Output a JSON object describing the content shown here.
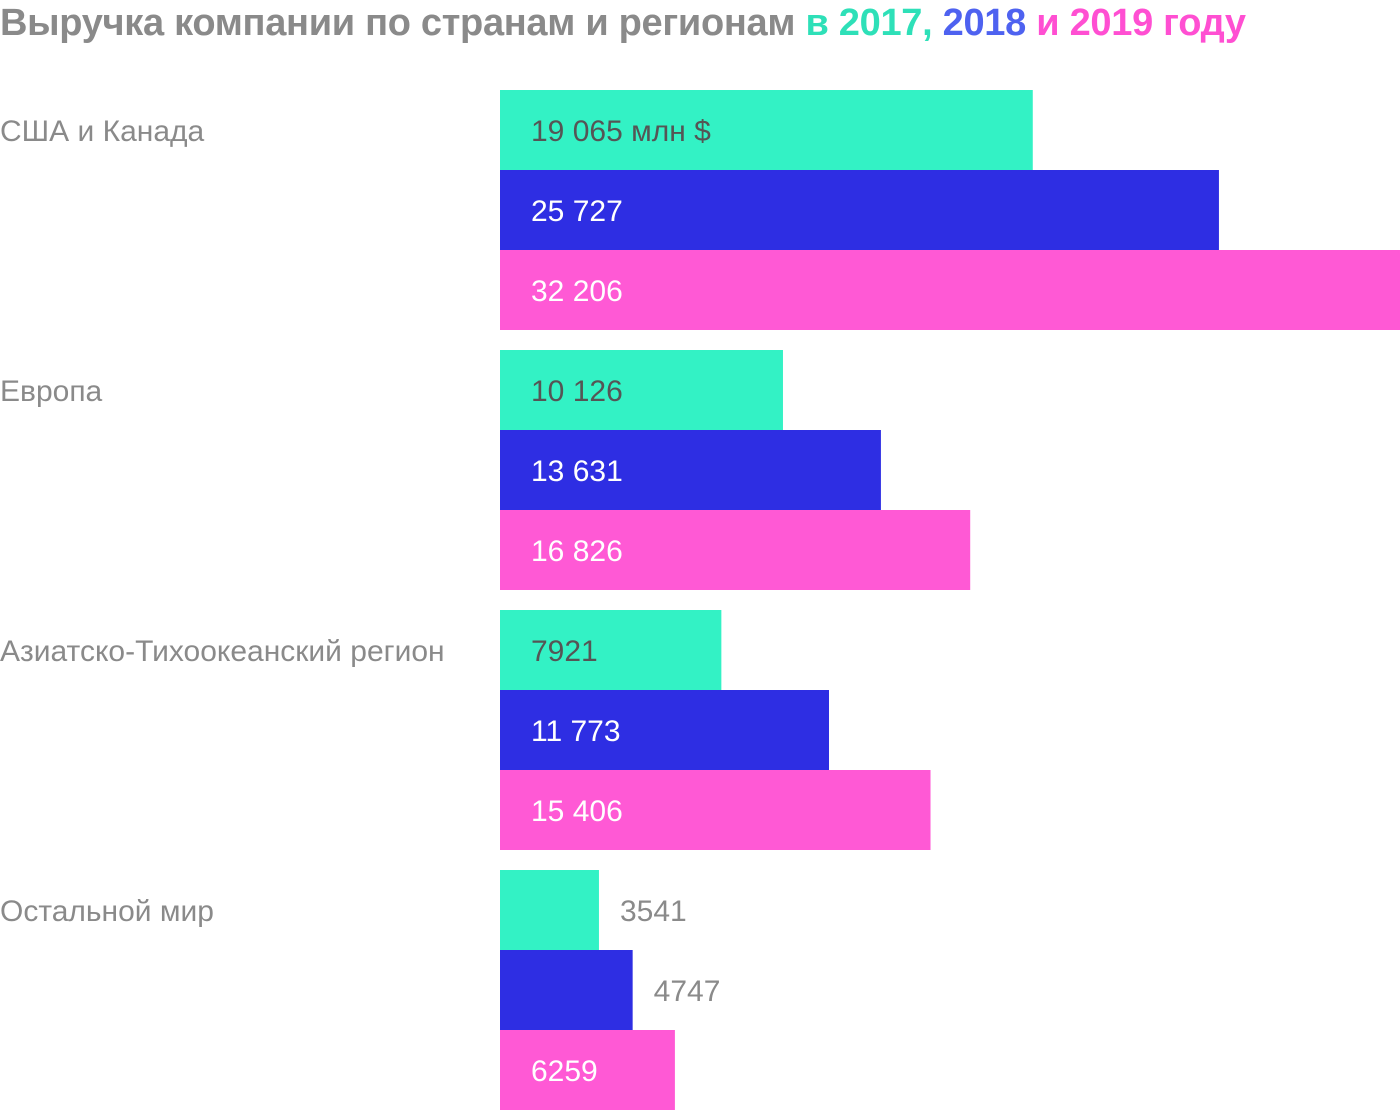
{
  "title": {
    "main": "Выручка компании по странам и регионам ",
    "connector1": "в ",
    "year1": "2017,",
    "space": " ",
    "year2": "2018",
    "connector2": " и ",
    "year3": "2019",
    "connector3": " году"
  },
  "colors": {
    "title_gray": "#8a8a8a",
    "2017": "#33f2c5",
    "2018": "#2e2ee3",
    "2019": "#ff59d5",
    "title_2017": "#2ee0b8",
    "title_2018": "#4e62f0",
    "title_2019": "#ff4fd2",
    "label_dark": "#555555",
    "label_light": "#ffffff",
    "label_outside": "#8a8a8a"
  },
  "chart_data": {
    "type": "bar",
    "orientation": "horizontal",
    "title": "Выручка компании по странам и регионам в 2017, 2018 и 2019 году",
    "unit": "млн $",
    "categories": [
      "США и Канада",
      "Европа",
      "Азиатско-Тихоокеанский регион",
      "Остальной мир"
    ],
    "series": [
      {
        "name": "2017",
        "values": [
          19065,
          10126,
          7921,
          3541
        ],
        "labels": [
          "19 065 млн $",
          "10 126",
          "7921",
          "3541"
        ]
      },
      {
        "name": "2018",
        "values": [
          25727,
          13631,
          11773,
          4747
        ],
        "labels": [
          "25 727",
          "13 631",
          "11 773",
          "4747"
        ]
      },
      {
        "name": "2019",
        "values": [
          32206,
          16826,
          15406,
          6259
        ],
        "labels": [
          "32 206",
          "16 826",
          "15 406",
          "6259"
        ]
      }
    ],
    "xlim": [
      0,
      32206
    ],
    "grid": false,
    "legend": "title"
  }
}
